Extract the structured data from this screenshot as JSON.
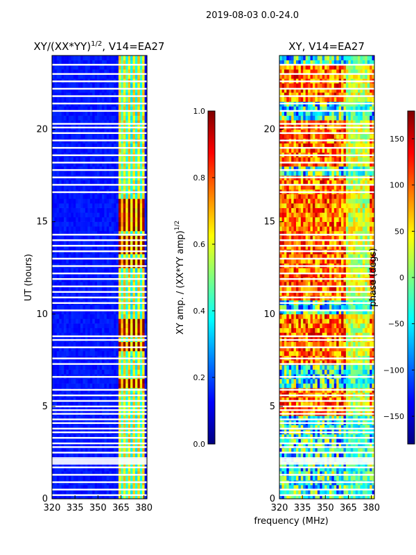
{
  "figure": {
    "suptitle": "2019-08-03 0.0-24.0",
    "shared_xlabel": "frequency (MHz)"
  },
  "colors": {
    "jet": [
      "#00007f",
      "#0000ff",
      "#007fff",
      "#00ffff",
      "#7fff7f",
      "#ffff00",
      "#ff7f00",
      "#ff0000",
      "#7f0000"
    ],
    "gap": "#ffffff",
    "axis": "#000000"
  },
  "chart_data": [
    {
      "type": "heatmap",
      "name": "normalized-xy-amplitude",
      "title_main": "XY/(XX*YY)",
      "title_power": "1/2",
      "title_suffix": ", V14=EA27",
      "xlabel": "",
      "ylabel": "UT (hours)",
      "xlim": [
        320,
        382
      ],
      "ylim": [
        0,
        24
      ],
      "xticks": [
        320,
        335,
        350,
        365,
        380
      ],
      "yticks": [
        0,
        5,
        10,
        15,
        20
      ],
      "colorbar": {
        "label_main": "XY amp. / (XX*YY amp)",
        "label_power": "1/2",
        "range": [
          0.0,
          1.0
        ],
        "ticks": [
          "0.0",
          "0.2",
          "0.4",
          "0.6",
          "0.8",
          "1.0"
        ],
        "tick_values": [
          0.0,
          0.2,
          0.4,
          0.6,
          0.8,
          1.0
        ]
      },
      "background_level": 0.12,
      "active_band_mhz": [
        363,
        380
      ],
      "high_amplitude_hours": [
        [
          5.9,
          6.4
        ],
        [
          8.0,
          8.4
        ],
        [
          8.8,
          9.8
        ],
        [
          12.6,
          13.0
        ],
        [
          13.3,
          14.2
        ],
        [
          14.6,
          16.2
        ]
      ],
      "gap_hours": [
        0.2,
        0.5,
        0.9,
        1.3,
        1.7,
        1.9,
        2.0,
        2.1,
        2.2,
        2.5,
        2.8,
        3.0,
        3.3,
        3.6,
        3.8,
        4.1,
        4.3,
        4.6,
        4.8,
        5.0,
        5.3,
        5.6,
        5.9,
        6.6,
        7.3,
        7.6,
        8.2,
        8.6,
        8.8,
        10.2,
        10.6,
        10.9,
        11.2,
        11.5,
        11.9,
        12.2,
        12.6,
        13.0,
        13.4,
        13.7,
        14.0,
        14.3,
        16.6,
        17.0,
        17.4,
        17.8,
        18.2,
        18.6,
        19.0,
        19.4,
        19.8,
        20.1,
        20.3,
        21.0,
        21.4,
        21.8,
        22.2,
        22.6,
        23.0,
        23.5
      ]
    },
    {
      "type": "heatmap",
      "name": "xy-phase",
      "title_main": "XY, V14=EA27",
      "xlabel": "frequency (MHz)",
      "ylabel": "",
      "xlim": [
        320,
        382
      ],
      "ylim": [
        0,
        24
      ],
      "xticks": [
        320,
        335,
        350,
        365,
        380
      ],
      "yticks": [
        0,
        5,
        10,
        15,
        20
      ],
      "colorbar": {
        "label_main": "phase (degs)",
        "range": [
          -180,
          180
        ],
        "ticks": [
          "150",
          "100",
          "50",
          "0",
          "−50",
          "−100",
          "−150"
        ],
        "tick_values": [
          150,
          100,
          50,
          0,
          -50,
          -100,
          -150
        ]
      },
      "warm_phase_hours": [
        [
          4.5,
          6.0
        ],
        [
          7.2,
          10.0
        ],
        [
          10.8,
          17.5
        ],
        [
          18.0,
          20.5
        ],
        [
          21.5,
          23.5
        ]
      ],
      "gap_hours": [
        0.2,
        0.5,
        0.9,
        1.3,
        1.7,
        1.9,
        2.0,
        2.1,
        2.2,
        2.5,
        2.8,
        3.0,
        3.3,
        3.6,
        3.8,
        4.1,
        4.3,
        4.6,
        4.8,
        5.0,
        5.3,
        5.6,
        5.9,
        6.6,
        7.3,
        7.6,
        8.2,
        8.6,
        8.8,
        10.2,
        10.6,
        10.9,
        11.2,
        11.5,
        11.9,
        12.2,
        12.6,
        13.0,
        13.4,
        13.7,
        14.0,
        14.3,
        16.6,
        17.0,
        17.4,
        17.8,
        18.2,
        18.6,
        19.0,
        19.4,
        19.8,
        20.1,
        20.3,
        21.0,
        21.4,
        21.8,
        22.2,
        22.6,
        23.0,
        23.5
      ]
    }
  ]
}
